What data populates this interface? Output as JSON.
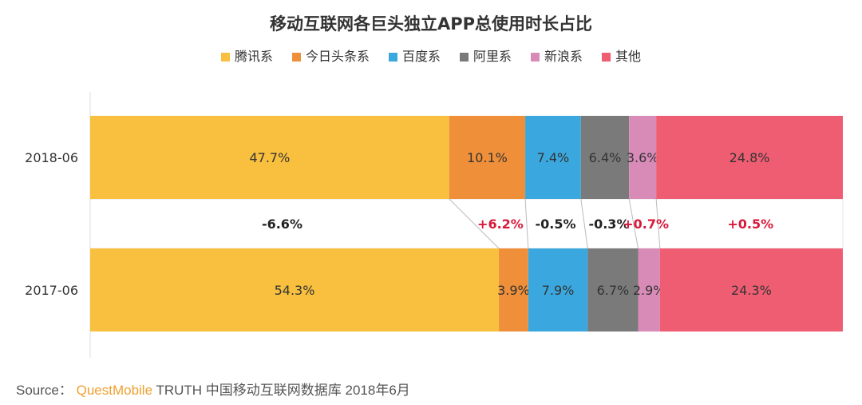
{
  "chart_data": {
    "type": "bar",
    "stacked": "100%",
    "orientation": "horizontal",
    "title": "移动互联网各巨头独立APP总使用时长占比",
    "categories": [
      "2018-06",
      "2017-06"
    ],
    "series": [
      {
        "name": "腾讯系",
        "color": "#f8c03e",
        "values": [
          47.7,
          54.3
        ],
        "labels": [
          "47.7%",
          "54.3%"
        ]
      },
      {
        "name": "今日头条系",
        "color": "#f08f3a",
        "values": [
          10.1,
          3.9
        ],
        "labels": [
          "10.1%",
          "3.9%"
        ]
      },
      {
        "name": "百度系",
        "color": "#3aa8de",
        "values": [
          7.4,
          7.9
        ],
        "labels": [
          "7.4%",
          "7.9%"
        ]
      },
      {
        "name": "阿里系",
        "color": "#7a7a7a",
        "values": [
          6.4,
          6.7
        ],
        "labels": [
          "6.4%",
          "6.7%"
        ]
      },
      {
        "name": "新浪系",
        "color": "#d98bb8",
        "values": [
          3.6,
          2.9
        ],
        "labels": [
          "3.6%",
          "2.9%"
        ]
      },
      {
        "name": "其他",
        "color": "#ef5d73",
        "values": [
          24.8,
          24.3
        ],
        "labels": [
          "24.8%",
          "24.3%"
        ]
      }
    ],
    "changes": [
      {
        "label": "-6.6%",
        "positive": false
      },
      {
        "label": "+6.2%",
        "positive": true
      },
      {
        "label": "-0.5%",
        "positive": false
      },
      {
        "label": "-0.3%",
        "positive": false
      },
      {
        "label": "+0.7%",
        "positive": true
      },
      {
        "label": "+0.5%",
        "positive": true
      }
    ],
    "xlim": [
      0,
      100
    ],
    "legend_position": "top",
    "grid": false
  },
  "source": {
    "prefix": "Source：",
    "brand": "QuestMobile",
    "rest": "TRUTH 中国移动互联网数据库 2018年6月"
  }
}
